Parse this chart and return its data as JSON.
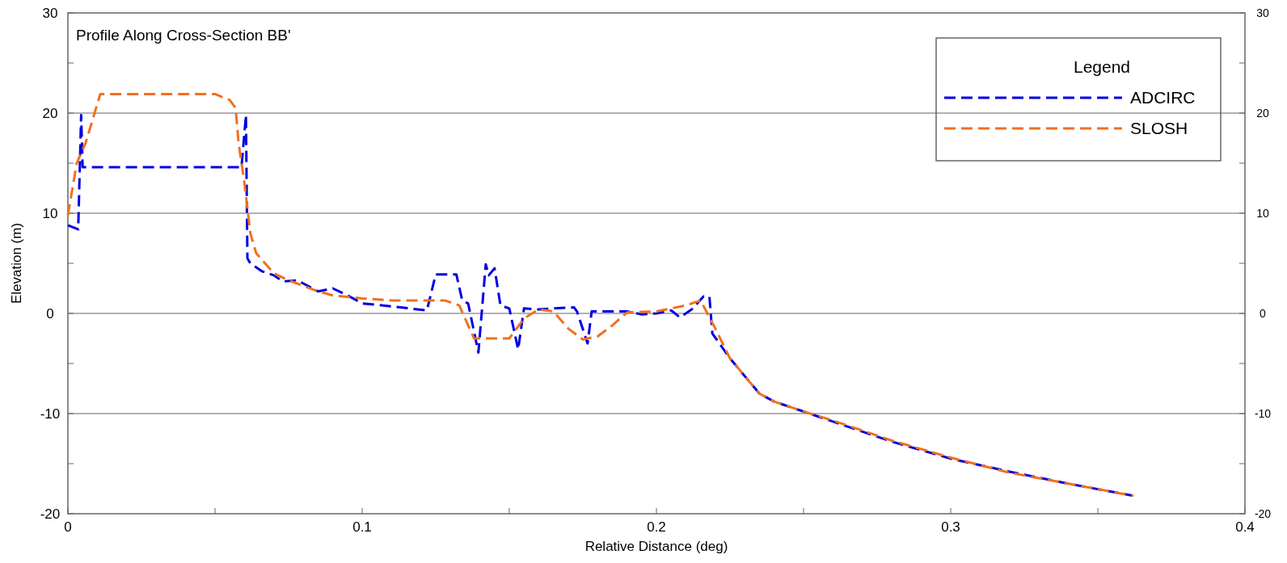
{
  "chart_data": {
    "type": "line",
    "title": "Profile Along Cross-Section BB'",
    "xlabel": "Relative Distance (deg)",
    "ylabel": "Elevation (m)",
    "xlim": [
      0,
      0.4
    ],
    "xticks": [
      0,
      {
        "value": 0.05,
        "label": null
      },
      0.1,
      {
        "value": 0.15,
        "label": null
      },
      0.2,
      {
        "value": 0.25,
        "label": null
      },
      0.3,
      {
        "value": 0.35,
        "label": null
      },
      0.4
    ],
    "ylim": [
      -20,
      30
    ],
    "yticks": [
      -20,
      {
        "value": -15,
        "label": null
      },
      -10,
      {
        "value": -5,
        "label": null
      },
      0,
      {
        "value": 5,
        "label": null
      },
      10,
      {
        "value": 15,
        "label": null
      },
      20,
      {
        "value": 25,
        "label": null
      },
      30
    ],
    "y2lim": [
      -20,
      30
    ],
    "y2ticks": [
      -20,
      {
        "value": -15,
        "label": null
      },
      -10,
      {
        "value": -5,
        "label": null
      },
      0,
      {
        "value": 5,
        "label": null
      },
      10,
      {
        "value": 15,
        "label": null
      },
      20,
      {
        "value": 25,
        "label": null
      },
      30
    ],
    "grid": "y",
    "legend": "top right",
    "legend_title": "Legend",
    "line_style": "dashed",
    "marker": "none",
    "series": [
      {
        "name": "ADCIRC",
        "color": "#0000e0",
        "x": [
          0,
          0.0035,
          0.0045,
          0.005,
          0.059,
          0.0605,
          0.061,
          0.062,
          0.066,
          0.07,
          0.073,
          0.078,
          0.085,
          0.09,
          0.095,
          0.1,
          0.11,
          0.122,
          0.125,
          0.132,
          0.134,
          0.136,
          0.1395,
          0.142,
          0.143,
          0.145,
          0.147,
          0.15,
          0.153,
          0.155,
          0.16,
          0.165,
          0.172,
          0.173,
          0.1766,
          0.178,
          0.185,
          0.19,
          0.195,
          0.2,
          0.205,
          0.208,
          0.212,
          0.216,
          0.218,
          0.219,
          0.225,
          0.235,
          0.24,
          0.25,
          0.26,
          0.28,
          0.3,
          0.32,
          0.34,
          0.362
        ],
        "values": [
          8.8,
          8.4,
          19.8,
          14.6,
          14.6,
          19.8,
          5.5,
          5,
          4.2,
          3.8,
          3.2,
          3.3,
          2.2,
          2.5,
          1.8,
          1,
          0.7,
          0.3,
          3.9,
          3.9,
          1.3,
          1,
          -3.9,
          4.9,
          3.8,
          4.5,
          0.8,
          0.5,
          -3.6,
          0.5,
          0.4,
          0.5,
          0.6,
          0.2,
          -3,
          0.2,
          0.2,
          0.2,
          -0.1,
          0,
          0.3,
          -0.4,
          0.4,
          1.7,
          1.7,
          -2,
          -4.5,
          -8,
          -8.8,
          -9.8,
          -10.8,
          -12.8,
          -14.5,
          -15.8,
          -17,
          -18.2
        ]
      },
      {
        "name": "SLOSH",
        "color": "#f07020",
        "x": [
          0,
          0.003,
          0.006,
          0.011,
          0.05,
          0.055,
          0.057,
          0.058,
          0.06,
          0.062,
          0.064,
          0.067,
          0.07,
          0.075,
          0.085,
          0.09,
          0.1,
          0.11,
          0.128,
          0.133,
          0.138,
          0.15,
          0.155,
          0.16,
          0.165,
          0.17,
          0.175,
          0.18,
          0.185,
          0.19,
          0.2,
          0.21,
          0.215,
          0.22,
          0.225,
          0.235,
          0.24,
          0.25,
          0.26,
          0.28,
          0.3,
          0.32,
          0.34,
          0.362
        ],
        "values": [
          9.8,
          15,
          17,
          21.9,
          21.9,
          21.3,
          20.5,
          17,
          13,
          8,
          6,
          5,
          4,
          3.3,
          2.2,
          1.8,
          1.5,
          1.3,
          1.3,
          0.8,
          -2.5,
          -2.5,
          -0.5,
          0.4,
          0.2,
          -1.5,
          -2.6,
          -2.3,
          -1.2,
          0.1,
          0.2,
          0.8,
          1.3,
          -1.5,
          -4.5,
          -8,
          -8.8,
          -9.8,
          -10.7,
          -12.7,
          -14.4,
          -15.9,
          -17,
          -18.2
        ]
      }
    ]
  }
}
